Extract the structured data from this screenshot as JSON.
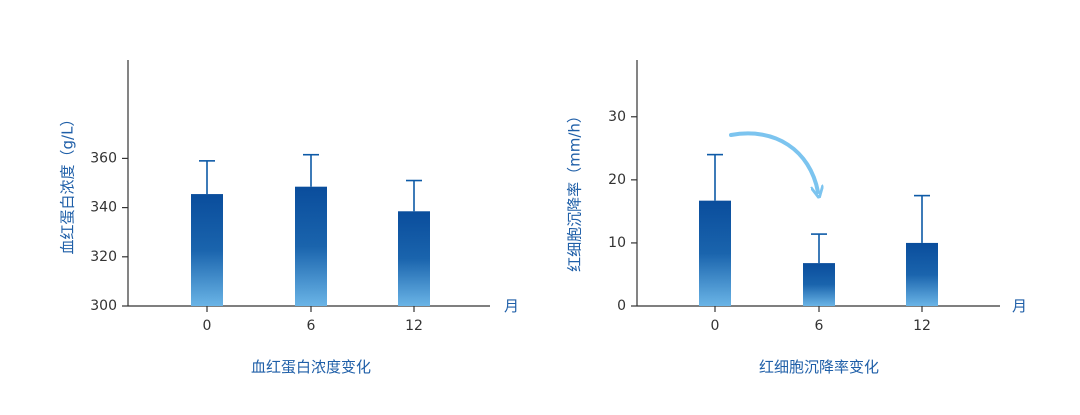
{
  "colors": {
    "bar_top": "#0a4d9c",
    "bar_bottom": "#6ab4e6",
    "error_bar": "#0d5aa7",
    "arrow": "#7cc4ef",
    "label": "#1f5fa8",
    "axis": "#333333"
  },
  "chart_data": [
    {
      "type": "bar",
      "categories": [
        "0",
        "6",
        "12"
      ],
      "values": [
        345.5,
        348.5,
        338.5
      ],
      "error_upper": [
        359,
        361.5,
        351
      ],
      "ylabel": "血红蛋白浓度（g/L）",
      "xunit": "月",
      "caption": "血红蛋白浓度变化",
      "ylim": [
        300,
        400
      ],
      "yticks": [
        "300",
        "320",
        "340",
        "360"
      ],
      "grid": false
    },
    {
      "type": "bar",
      "categories": [
        "0",
        "6",
        "12"
      ],
      "values": [
        16.7,
        6.8,
        10
      ],
      "error_upper": [
        24,
        11.4,
        17.5
      ],
      "ylabel": "红细胞沉降率（mm/h）",
      "xunit": "月",
      "caption": "红细胞沉降率变化",
      "ylim": [
        0,
        39
      ],
      "yticks": [
        "0",
        "10",
        "20",
        "30"
      ],
      "annotation": "curved-arrow-icon",
      "grid": false
    }
  ]
}
